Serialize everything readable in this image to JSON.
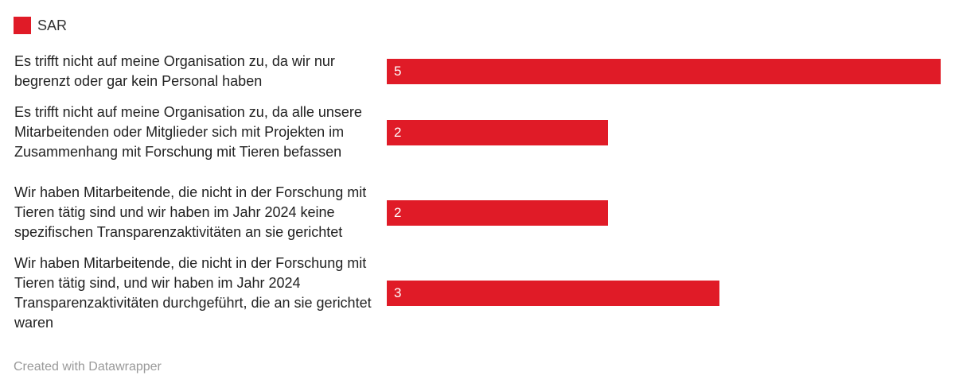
{
  "chart_data": {
    "type": "bar",
    "orientation": "horizontal",
    "categories": [
      "Es trifft nicht auf meine Organisation zu, da wir nur begrenzt oder gar kein Personal haben",
      "Es trifft nicht auf meine Organisation zu, da alle unsere Mitarbeitenden oder Mitglieder sich mit Projekten im Zusammenhang mit Forschung mit Tieren befassen",
      "Wir haben Mitarbeitende, die nicht in der Forschung mit Tieren tätig sind und wir haben im Jahr 2024 keine spezifischen Transparenzaktivitäten an sie gerichtet",
      "Wir haben Mitarbeitende, die nicht in der Forschung mit Tieren tätig sind, und wir haben im Jahr 2024 Transparenzaktivitäten durchgeführt, die an sie gerichtet waren"
    ],
    "series": [
      {
        "name": "SAR",
        "values": [
          5,
          2,
          2,
          3
        ],
        "color": "#e01b27"
      }
    ],
    "xlim": [
      0,
      5
    ],
    "grid": false,
    "legend": "top-left",
    "data_labels": true
  },
  "footer": "Created with Datawrapper"
}
